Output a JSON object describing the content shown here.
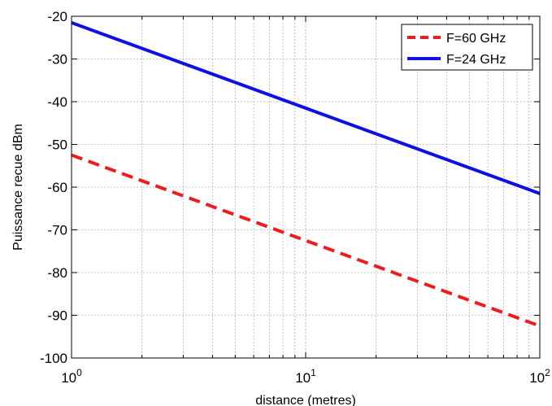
{
  "chart_data": {
    "type": "line",
    "xscale": "log",
    "xlim": [
      1,
      100
    ],
    "ylim": [
      -100,
      -20
    ],
    "xlabel": "distance (metres)",
    "ylabel": "Puissance recue dBm",
    "grid": true,
    "legend": "top-right",
    "x_ticks": [
      {
        "base": "10",
        "exp": "0"
      },
      {
        "base": "10",
        "exp": "1"
      },
      {
        "base": "10",
        "exp": "2"
      }
    ],
    "y_ticks": [
      "-20",
      "-30",
      "-40",
      "-50",
      "-60",
      "-70",
      "-80",
      "-90",
      "-100"
    ],
    "series": [
      {
        "name": "F=60 GHz",
        "color": "#ee1c1c",
        "style": "dashed",
        "x": [
          1,
          100
        ],
        "y": [
          -52.5,
          -92.5
        ]
      },
      {
        "name": "F=24 GHz",
        "color": "#1010e0",
        "style": "solid",
        "x": [
          1,
          100
        ],
        "y": [
          -21.5,
          -61.5
        ]
      }
    ]
  }
}
